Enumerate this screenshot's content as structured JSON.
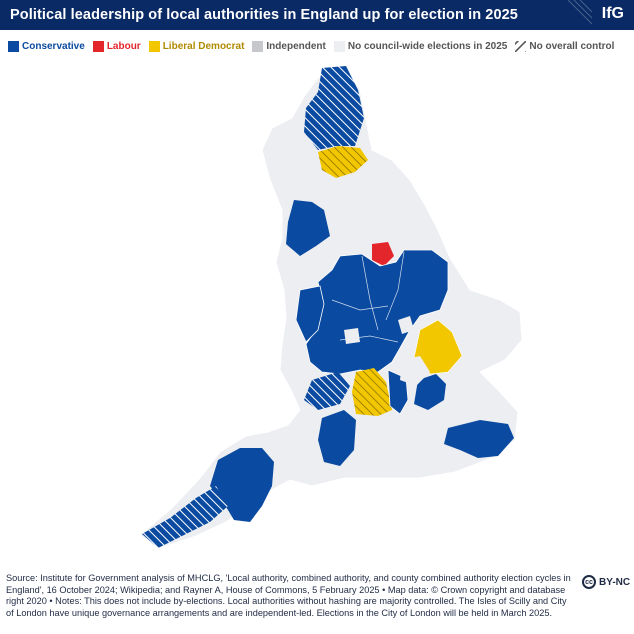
{
  "header": {
    "title": "Political leadership of local authorities in England up for election in 2025",
    "logo": "IfG"
  },
  "legend": [
    {
      "label": "Conservative",
      "color": "#0a4aa0",
      "text_color": "#0a4aa0",
      "pattern": "solid"
    },
    {
      "label": "Labour",
      "color": "#e3262c",
      "text_color": "#e3262c",
      "pattern": "solid"
    },
    {
      "label": "Liberal Democrat",
      "color": "#f2c700",
      "text_color": "#b08a00",
      "pattern": "solid"
    },
    {
      "label": "Independent",
      "color": "#c6c8cc",
      "text_color": "#555555",
      "pattern": "solid"
    },
    {
      "label": "No council-wide elections in 2025",
      "color": "#eceef2",
      "text_color": "#555555",
      "pattern": "solid"
    },
    {
      "label": "No overall control",
      "color": "#555555",
      "text_color": "#555555",
      "pattern": "hatch"
    }
  ],
  "source": {
    "text": "Source: Institute for Government analysis of MHCLG, 'Local authority, combined authority, and county combined authority election cycles in England', 16 October 2024; Wikipedia; and Rayner A, House of Commons, 5 February 2025 • Map data: © Crown copyright and database right 2020 • Notes: This does not include by-elections. Local authorities without hashing are majority controlled. The Isles of Scilly and City of London have unique governance arrangements and are independent-led. Elections in the City of London will be held in March 2025."
  },
  "license": {
    "icon": "cc",
    "label": "BY-NC"
  },
  "colors": {
    "header_bg": "#0a2a66",
    "conservative": "#0a4aa0",
    "labour": "#e3262c",
    "libdem": "#f2c700",
    "no_election": "#eceef2"
  }
}
